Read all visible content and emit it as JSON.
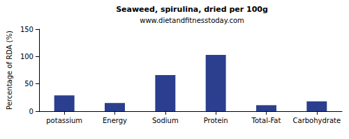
{
  "chart_data": {
    "type": "bar",
    "title": "Seaweed, spirulina, dried per 100g",
    "subtitle": "www.dietandfitnesstoday.com",
    "y_label": "Percentage of RDA (%)",
    "categories": [
      "potassium",
      "Energy",
      "Sodium",
      "Protein",
      "Total-Fat",
      "Carbohydrate"
    ],
    "values": [
      29,
      15,
      66,
      103,
      11,
      18
    ],
    "color": "#2b3f8e",
    "ylim": [
      0,
      150
    ],
    "yticks": [
      0,
      50,
      100,
      150
    ],
    "grid": false
  }
}
